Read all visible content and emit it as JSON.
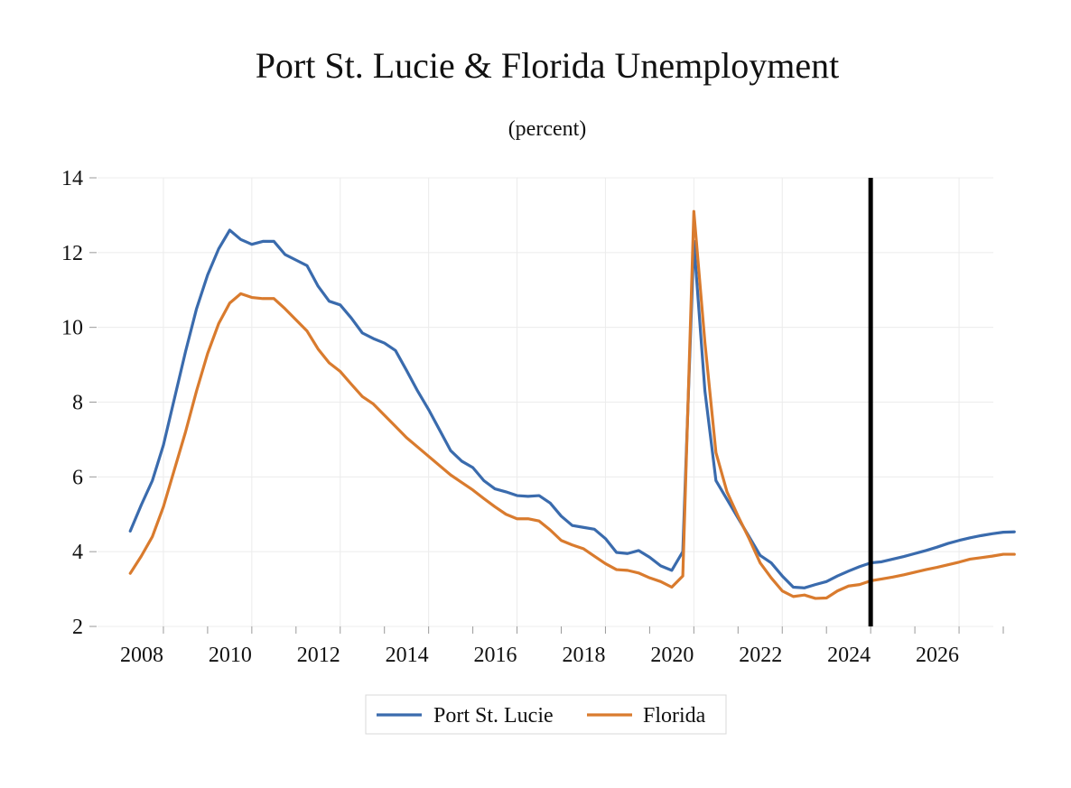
{
  "chart_data": {
    "type": "line",
    "title": "Port St. Lucie & Florida Unemployment",
    "subtitle": "(percent)",
    "xlabel": "",
    "ylabel": "",
    "xlim": [
      2007.0,
      2027.0
    ],
    "ylim": [
      2,
      14
    ],
    "y_ticks": [
      2,
      4,
      6,
      8,
      10,
      12,
      14
    ],
    "x_ticks": [
      2008,
      2010,
      2012,
      2014,
      2016,
      2018,
      2020,
      2022,
      2024,
      2026
    ],
    "grid": true,
    "legend_position": "bottom-center",
    "forecast_marker_year": 2024.0,
    "colors": {
      "port_st_lucie": "#3a6bad",
      "florida": "#d97b2e",
      "forecast_marker": "#000000"
    },
    "series": [
      {
        "name": "Port St. Lucie",
        "color": "#3a6bad",
        "points": [
          [
            2007.25,
            4.55
          ],
          [
            2007.5,
            5.25
          ],
          [
            2007.75,
            5.9
          ],
          [
            2008.0,
            6.85
          ],
          [
            2008.25,
            8.1
          ],
          [
            2008.5,
            9.35
          ],
          [
            2008.75,
            10.5
          ],
          [
            2009.0,
            11.4
          ],
          [
            2009.25,
            12.1
          ],
          [
            2009.5,
            12.6
          ],
          [
            2009.75,
            12.35
          ],
          [
            2010.0,
            12.22
          ],
          [
            2010.25,
            12.3
          ],
          [
            2010.5,
            12.3
          ],
          [
            2010.75,
            11.95
          ],
          [
            2011.0,
            11.8
          ],
          [
            2011.25,
            11.65
          ],
          [
            2011.5,
            11.1
          ],
          [
            2011.75,
            10.7
          ],
          [
            2012.0,
            10.6
          ],
          [
            2012.25,
            10.25
          ],
          [
            2012.5,
            9.85
          ],
          [
            2012.75,
            9.7
          ],
          [
            2013.0,
            9.58
          ],
          [
            2013.25,
            9.38
          ],
          [
            2013.5,
            8.85
          ],
          [
            2013.75,
            8.3
          ],
          [
            2014.0,
            7.8
          ],
          [
            2014.25,
            7.25
          ],
          [
            2014.5,
            6.7
          ],
          [
            2014.75,
            6.42
          ],
          [
            2015.0,
            6.25
          ],
          [
            2015.25,
            5.9
          ],
          [
            2015.5,
            5.68
          ],
          [
            2015.75,
            5.6
          ],
          [
            2016.0,
            5.5
          ],
          [
            2016.25,
            5.48
          ],
          [
            2016.5,
            5.5
          ],
          [
            2016.75,
            5.3
          ],
          [
            2017.0,
            4.95
          ],
          [
            2017.25,
            4.7
          ],
          [
            2017.5,
            4.65
          ],
          [
            2017.75,
            4.6
          ],
          [
            2018.0,
            4.35
          ],
          [
            2018.25,
            3.98
          ],
          [
            2018.5,
            3.95
          ],
          [
            2018.75,
            4.03
          ],
          [
            2019.0,
            3.85
          ],
          [
            2019.25,
            3.62
          ],
          [
            2019.5,
            3.5
          ],
          [
            2019.75,
            4.0
          ],
          [
            2020.0,
            12.3
          ],
          [
            2020.25,
            8.3
          ],
          [
            2020.5,
            5.9
          ],
          [
            2020.75,
            5.4
          ],
          [
            2021.0,
            4.9
          ],
          [
            2021.25,
            4.4
          ],
          [
            2021.5,
            3.9
          ],
          [
            2021.75,
            3.7
          ],
          [
            2022.0,
            3.35
          ],
          [
            2022.25,
            3.05
          ],
          [
            2022.5,
            3.03
          ],
          [
            2022.75,
            3.12
          ],
          [
            2023.0,
            3.2
          ],
          [
            2023.25,
            3.35
          ],
          [
            2023.5,
            3.48
          ],
          [
            2023.75,
            3.6
          ],
          [
            2024.0,
            3.7
          ],
          [
            2024.25,
            3.73
          ],
          [
            2024.5,
            3.8
          ],
          [
            2024.75,
            3.87
          ],
          [
            2025.0,
            3.95
          ],
          [
            2025.25,
            4.03
          ],
          [
            2025.5,
            4.12
          ],
          [
            2025.75,
            4.22
          ],
          [
            2026.0,
            4.3
          ],
          [
            2026.25,
            4.37
          ],
          [
            2026.5,
            4.43
          ],
          [
            2026.75,
            4.48
          ],
          [
            2027.0,
            4.52
          ],
          [
            2027.25,
            4.53
          ]
        ]
      },
      {
        "name": "Florida",
        "color": "#d97b2e",
        "points": [
          [
            2007.25,
            3.42
          ],
          [
            2007.5,
            3.88
          ],
          [
            2007.75,
            4.4
          ],
          [
            2008.0,
            5.2
          ],
          [
            2008.25,
            6.2
          ],
          [
            2008.5,
            7.2
          ],
          [
            2008.75,
            8.3
          ],
          [
            2009.0,
            9.3
          ],
          [
            2009.25,
            10.1
          ],
          [
            2009.5,
            10.65
          ],
          [
            2009.75,
            10.9
          ],
          [
            2010.0,
            10.8
          ],
          [
            2010.25,
            10.77
          ],
          [
            2010.5,
            10.77
          ],
          [
            2010.75,
            10.5
          ],
          [
            2011.0,
            10.2
          ],
          [
            2011.25,
            9.9
          ],
          [
            2011.5,
            9.42
          ],
          [
            2011.75,
            9.05
          ],
          [
            2012.0,
            8.82
          ],
          [
            2012.25,
            8.48
          ],
          [
            2012.5,
            8.15
          ],
          [
            2012.75,
            7.95
          ],
          [
            2013.0,
            7.65
          ],
          [
            2013.25,
            7.35
          ],
          [
            2013.5,
            7.05
          ],
          [
            2013.75,
            6.8
          ],
          [
            2014.0,
            6.55
          ],
          [
            2014.25,
            6.3
          ],
          [
            2014.5,
            6.05
          ],
          [
            2014.75,
            5.85
          ],
          [
            2015.0,
            5.65
          ],
          [
            2015.25,
            5.42
          ],
          [
            2015.5,
            5.2
          ],
          [
            2015.75,
            5.0
          ],
          [
            2016.0,
            4.88
          ],
          [
            2016.25,
            4.88
          ],
          [
            2016.5,
            4.82
          ],
          [
            2016.75,
            4.58
          ],
          [
            2017.0,
            4.3
          ],
          [
            2017.25,
            4.18
          ],
          [
            2017.5,
            4.08
          ],
          [
            2017.75,
            3.88
          ],
          [
            2018.0,
            3.68
          ],
          [
            2018.25,
            3.52
          ],
          [
            2018.5,
            3.5
          ],
          [
            2018.75,
            3.43
          ],
          [
            2019.0,
            3.3
          ],
          [
            2019.25,
            3.2
          ],
          [
            2019.5,
            3.05
          ],
          [
            2019.75,
            3.35
          ],
          [
            2020.0,
            13.1
          ],
          [
            2020.25,
            9.6
          ],
          [
            2020.5,
            6.65
          ],
          [
            2020.75,
            5.6
          ],
          [
            2021.0,
            4.95
          ],
          [
            2021.25,
            4.35
          ],
          [
            2021.5,
            3.7
          ],
          [
            2021.75,
            3.3
          ],
          [
            2022.0,
            2.95
          ],
          [
            2022.25,
            2.8
          ],
          [
            2022.5,
            2.84
          ],
          [
            2022.75,
            2.75
          ],
          [
            2023.0,
            2.76
          ],
          [
            2023.25,
            2.95
          ],
          [
            2023.5,
            3.08
          ],
          [
            2023.75,
            3.12
          ],
          [
            2024.0,
            3.22
          ],
          [
            2024.25,
            3.27
          ],
          [
            2024.5,
            3.32
          ],
          [
            2024.75,
            3.38
          ],
          [
            2025.0,
            3.45
          ],
          [
            2025.25,
            3.52
          ],
          [
            2025.5,
            3.58
          ],
          [
            2025.75,
            3.65
          ],
          [
            2026.0,
            3.72
          ],
          [
            2026.25,
            3.8
          ],
          [
            2026.5,
            3.84
          ],
          [
            2026.75,
            3.88
          ],
          [
            2027.0,
            3.93
          ],
          [
            2027.25,
            3.93
          ]
        ]
      }
    ]
  }
}
